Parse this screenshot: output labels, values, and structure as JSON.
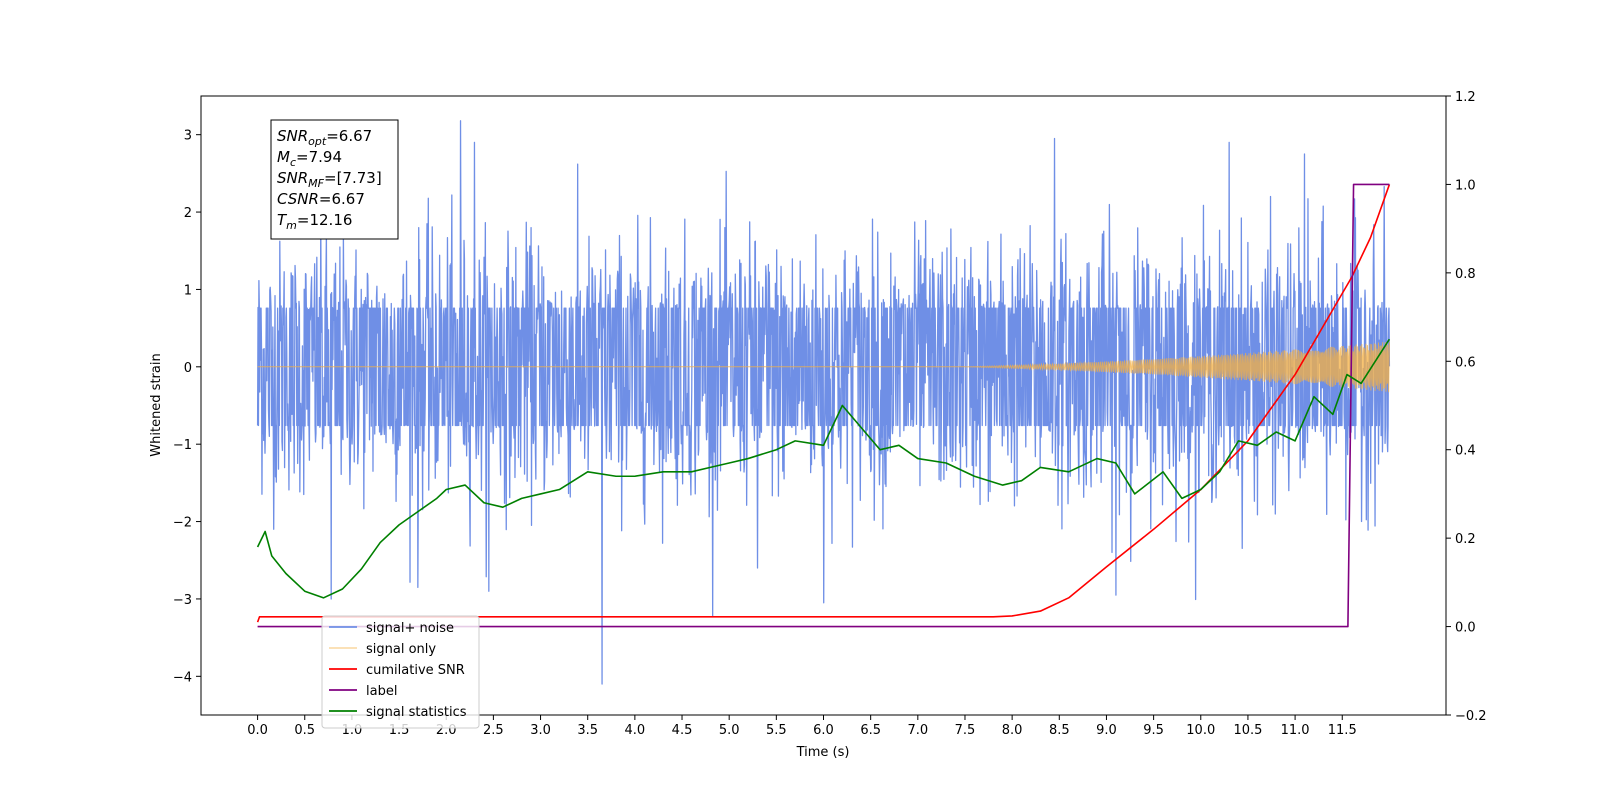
{
  "chart_data": {
    "type": "line",
    "xlabel": "Time (s)",
    "ylabel": "Whitened strain",
    "xlim": [
      -0.6,
      12.6
    ],
    "ylim": [
      -4.5,
      3.5
    ],
    "y2lim": [
      -0.2,
      1.2
    ],
    "x_ticks": [
      0.0,
      0.5,
      1.0,
      1.5,
      2.0,
      2.5,
      3.0,
      3.5,
      4.0,
      4.5,
      5.0,
      5.5,
      6.0,
      6.5,
      7.0,
      7.5,
      8.0,
      8.5,
      9.0,
      9.5,
      10.0,
      10.5,
      11.0,
      11.5
    ],
    "y_ticks": [
      -4,
      -3,
      -2,
      -1,
      0,
      1,
      2,
      3
    ],
    "y2_ticks": [
      -0.2,
      0.0,
      0.2,
      0.4,
      0.6,
      0.8,
      1.0,
      1.2
    ],
    "grid": false,
    "legend_position": "lower-left",
    "annotation": [
      {
        "base": "SNR",
        "sub": "opt",
        "value": "=6.67"
      },
      {
        "base": "M",
        "sub": "c",
        "value": "=7.94"
      },
      {
        "base": "SNR",
        "sub": "MF",
        "value": "=[7.73]"
      },
      {
        "base": "CSNR",
        "sub": "",
        "value": "=6.67"
      },
      {
        "base": "T",
        "sub": "m",
        "value": "=12.16"
      }
    ],
    "series": [
      {
        "name": "signal+ noise",
        "color": "#6f8fe6",
        "axis": "left",
        "kind": "noise",
        "x_range": [
          0.0,
          12.0
        ],
        "typical_range": [
          -1.6,
          1.6
        ],
        "spikes": [
          {
            "x": 2.15,
            "y": 3.18
          },
          {
            "x": 2.3,
            "y": 2.9
          },
          {
            "x": 3.65,
            "y": -4.1
          },
          {
            "x": 0.78,
            "y": -3.0
          },
          {
            "x": 2.45,
            "y": -2.9
          },
          {
            "x": 6.0,
            "y": -3.05
          },
          {
            "x": 9.1,
            "y": -2.95
          },
          {
            "x": 11.1,
            "y": 2.75
          },
          {
            "x": 8.45,
            "y": 2.95
          },
          {
            "x": 10.3,
            "y": 2.9
          },
          {
            "x": 1.7,
            "y": -2.85
          },
          {
            "x": 5.3,
            "y": -2.6
          }
        ]
      },
      {
        "name": "signal only",
        "color": "#f5b041",
        "axis": "left",
        "kind": "chirp",
        "x_range": [
          0.0,
          12.0
        ],
        "envelope": [
          [
            0.0,
            0.0
          ],
          [
            7.5,
            0.0
          ],
          [
            8.5,
            0.04
          ],
          [
            9.5,
            0.1
          ],
          [
            10.5,
            0.18
          ],
          [
            11.5,
            0.27
          ],
          [
            12.0,
            0.33
          ]
        ]
      },
      {
        "name": "cumilative SNR",
        "color": "#ff0000",
        "axis": "right",
        "x": [
          0.0,
          0.02,
          1.0,
          7.0,
          7.8,
          8.0,
          8.3,
          8.6,
          9.0,
          9.5,
          10.0,
          10.5,
          11.0,
          11.3,
          11.6,
          11.8,
          12.0
        ],
        "values": [
          0.01,
          0.022,
          0.022,
          0.022,
          0.022,
          0.024,
          0.035,
          0.065,
          0.135,
          0.22,
          0.31,
          0.42,
          0.57,
          0.68,
          0.79,
          0.88,
          1.0
        ]
      },
      {
        "name": "label",
        "color": "#800080",
        "axis": "right",
        "x": [
          0.0,
          11.56,
          11.62,
          12.0
        ],
        "values": [
          0.0,
          0.0,
          1.0,
          1.0
        ]
      },
      {
        "name": "signal statistics",
        "color": "#008000",
        "axis": "right",
        "x": [
          0.0,
          0.08,
          0.15,
          0.3,
          0.5,
          0.7,
          0.9,
          1.1,
          1.3,
          1.5,
          1.7,
          1.9,
          2.0,
          2.2,
          2.4,
          2.6,
          2.8,
          3.0,
          3.2,
          3.5,
          3.8,
          4.0,
          4.3,
          4.6,
          4.8,
          5.0,
          5.2,
          5.5,
          5.7,
          6.0,
          6.2,
          6.4,
          6.6,
          6.8,
          7.0,
          7.3,
          7.6,
          7.9,
          8.1,
          8.3,
          8.6,
          8.9,
          9.1,
          9.3,
          9.6,
          9.8,
          10.0,
          10.2,
          10.4,
          10.6,
          10.8,
          11.0,
          11.2,
          11.4,
          11.55,
          11.7,
          11.85,
          12.0
        ],
        "values": [
          0.18,
          0.215,
          0.16,
          0.12,
          0.08,
          0.065,
          0.085,
          0.13,
          0.19,
          0.23,
          0.26,
          0.29,
          0.31,
          0.32,
          0.28,
          0.27,
          0.29,
          0.3,
          0.31,
          0.35,
          0.34,
          0.34,
          0.35,
          0.35,
          0.36,
          0.37,
          0.38,
          0.4,
          0.42,
          0.41,
          0.5,
          0.45,
          0.4,
          0.41,
          0.38,
          0.37,
          0.34,
          0.32,
          0.33,
          0.36,
          0.35,
          0.38,
          0.37,
          0.3,
          0.35,
          0.29,
          0.31,
          0.35,
          0.42,
          0.41,
          0.44,
          0.42,
          0.52,
          0.48,
          0.57,
          0.55,
          0.6,
          0.65
        ]
      }
    ]
  }
}
